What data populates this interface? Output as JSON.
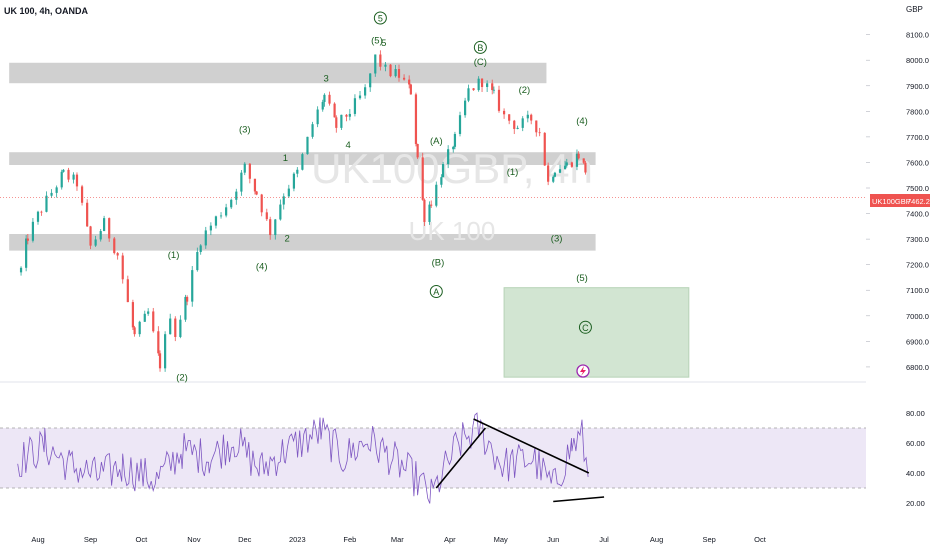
{
  "header": {
    "symbol_line": "UK 100, 4h, OANDA"
  },
  "watermark": {
    "main": "UK100GBP, 4h",
    "sub": "UK 100"
  },
  "price_tag": {
    "symbol": "UK100GBP",
    "value": "7462.2"
  },
  "colors": {
    "up": "#26a69a",
    "down": "#ef5350",
    "rsi": "#7e57c2",
    "rsi_band": "#ede7f6",
    "zone": "#c8c8c8",
    "target_box": "#d2e5d2",
    "label": "#1b5e20",
    "price_line": "#ef5350"
  },
  "chart_data": [
    {
      "type": "candlestick",
      "title": "UK 100, 4h, OANDA",
      "currency": "GBP",
      "y_ticks": [
        6800.0,
        6900.0,
        7000.0,
        7100.0,
        7200.0,
        7300.0,
        7400.0,
        7500.0,
        7600.0,
        7700.0,
        7800.0,
        7900.0,
        8000.0,
        8100.0
      ],
      "y_tick_labels": [
        "6800.0",
        "6900.0",
        "7000.0",
        "7100.0",
        "7200.0",
        "7300.0",
        "7400.0",
        "7500.0",
        "7600.0",
        "7700.0",
        "7800.0",
        "7900.0",
        "8000.0",
        "8100.0"
      ],
      "ylim": [
        6755,
        8215
      ],
      "x_ticks": [
        "Aug",
        "Sep",
        "Oct",
        "Nov",
        "Dec",
        "2023",
        "Feb",
        "Mar",
        "Apr",
        "May",
        "Jun",
        "Jul",
        "Aug",
        "Sep",
        "Oct"
      ],
      "last_price": 7462.2,
      "price_path": [
        {
          "d": "2022-07-22",
          "v": 7180
        },
        {
          "d": "2022-07-26",
          "v": 7310
        },
        {
          "d": "2022-08-03",
          "v": 7420
        },
        {
          "d": "2022-08-16",
          "v": 7555
        },
        {
          "d": "2022-08-24",
          "v": 7520
        },
        {
          "d": "2022-09-01",
          "v": 7270
        },
        {
          "d": "2022-09-09",
          "v": 7360
        },
        {
          "d": "2022-09-17",
          "v": 7240
        },
        {
          "d": "2022-09-27",
          "v": 6920
        },
        {
          "d": "2022-10-05",
          "v": 7010
        },
        {
          "d": "2022-10-12",
          "v": 6810
        },
        {
          "d": "2022-10-18",
          "v": 7010
        },
        {
          "d": "2022-10-21",
          "v": 6930
        },
        {
          "d": "2022-10-28",
          "v": 7080
        },
        {
          "d": "2022-11-05",
          "v": 7300
        },
        {
          "d": "2022-11-14",
          "v": 7380
        },
        {
          "d": "2022-11-23",
          "v": 7460
        },
        {
          "d": "2022-12-01",
          "v": 7580
        },
        {
          "d": "2022-12-08",
          "v": 7480
        },
        {
          "d": "2022-12-16",
          "v": 7330
        },
        {
          "d": "2022-12-24",
          "v": 7480
        },
        {
          "d": "2023-01-01",
          "v": 7560
        },
        {
          "d": "2023-01-10",
          "v": 7750
        },
        {
          "d": "2023-01-17",
          "v": 7860
        },
        {
          "d": "2023-01-24",
          "v": 7740
        },
        {
          "d": "2023-02-01",
          "v": 7800
        },
        {
          "d": "2023-02-10",
          "v": 7880
        },
        {
          "d": "2023-02-16",
          "v": 8010
        },
        {
          "d": "2023-02-22",
          "v": 7960
        },
        {
          "d": "2023-03-02",
          "v": 7940
        },
        {
          "d": "2023-03-09",
          "v": 7880
        },
        {
          "d": "2023-03-13",
          "v": 7620
        },
        {
          "d": "2023-03-17",
          "v": 7390
        },
        {
          "d": "2023-03-21",
          "v": 7450
        },
        {
          "d": "2023-03-28",
          "v": 7580
        },
        {
          "d": "2023-04-04",
          "v": 7690
        },
        {
          "d": "2023-04-12",
          "v": 7880
        },
        {
          "d": "2023-04-20",
          "v": 7920
        },
        {
          "d": "2023-04-27",
          "v": 7860
        },
        {
          "d": "2023-05-03",
          "v": 7780
        },
        {
          "d": "2023-05-11",
          "v": 7740
        },
        {
          "d": "2023-05-19",
          "v": 7770
        },
        {
          "d": "2023-05-24",
          "v": 7720
        },
        {
          "d": "2023-05-29",
          "v": 7520
        },
        {
          "d": "2023-06-02",
          "v": 7580
        },
        {
          "d": "2023-06-09",
          "v": 7590
        },
        {
          "d": "2023-06-16",
          "v": 7630
        },
        {
          "d": "2023-06-20",
          "v": 7570
        },
        {
          "d": "2023-06-22",
          "v": 7462
        }
      ],
      "zones": [
        {
          "from": "2022-07-15",
          "to": "2023-05-28",
          "low": 7910,
          "high": 7990
        },
        {
          "from": "2022-07-15",
          "to": "2023-06-26",
          "low": 7590,
          "high": 7640
        },
        {
          "from": "2022-07-15",
          "to": "2023-06-26",
          "low": 7255,
          "high": 7320
        }
      ],
      "target_box": {
        "from": "2023-05-03",
        "to": "2023-08-20",
        "low": 6760,
        "high": 7110
      },
      "wave_labels": [
        {
          "t": "5",
          "d": "2023-02-19",
          "p": 8165,
          "circled": true
        },
        {
          "t": "(5)",
          "d": "2023-02-17",
          "p": 8080
        },
        {
          "t": "5",
          "d": "2023-02-21",
          "p": 8070
        },
        {
          "t": "3",
          "d": "2023-01-18",
          "p": 7930
        },
        {
          "t": "(3)",
          "d": "2022-12-01",
          "p": 7730
        },
        {
          "t": "1",
          "d": "2022-12-25",
          "p": 7620
        },
        {
          "t": "4",
          "d": "2023-01-31",
          "p": 7670
        },
        {
          "t": "2",
          "d": "2022-12-26",
          "p": 7305
        },
        {
          "t": "(4)",
          "d": "2022-12-11",
          "p": 7195
        },
        {
          "t": "(1)",
          "d": "2022-10-20",
          "p": 7240
        },
        {
          "t": "(2)",
          "d": "2022-10-25",
          "p": 6760
        },
        {
          "t": "B",
          "d": "2023-04-19",
          "p": 8050,
          "circled": true
        },
        {
          "t": "(C)",
          "d": "2023-04-19",
          "p": 7995
        },
        {
          "t": "(2)",
          "d": "2023-05-15",
          "p": 7885
        },
        {
          "t": "(4)",
          "d": "2023-06-18",
          "p": 7765
        },
        {
          "t": "(A)",
          "d": "2023-03-24",
          "p": 7685
        },
        {
          "t": "(1)",
          "d": "2023-05-08",
          "p": 7565
        },
        {
          "t": "(B)",
          "d": "2023-03-25",
          "p": 7210
        },
        {
          "t": "(3)",
          "d": "2023-06-03",
          "p": 7305
        },
        {
          "t": "A",
          "d": "2023-03-24",
          "p": 7095,
          "circled": true
        },
        {
          "t": "(5)",
          "d": "2023-06-18",
          "p": 7150
        },
        {
          "t": "C",
          "d": "2023-06-20",
          "p": 6955,
          "circled": true
        }
      ]
    },
    {
      "type": "line",
      "indicator": "RSI",
      "y_ticks": [
        20.0,
        40.0,
        60.0,
        80.0
      ],
      "y_tick_labels": [
        "20.00",
        "40.00",
        "60.00",
        "80.00"
      ],
      "ylim": [
        15,
        87
      ],
      "band": [
        30,
        70
      ],
      "rsi_path": [
        {
          "d": "2022-07-20",
          "v": 48
        },
        {
          "d": "2022-08-05",
          "v": 58
        },
        {
          "d": "2022-08-20",
          "v": 45
        },
        {
          "d": "2022-09-05",
          "v": 38
        },
        {
          "d": "2022-09-20",
          "v": 44
        },
        {
          "d": "2022-10-10",
          "v": 35
        },
        {
          "d": "2022-10-25",
          "v": 55
        },
        {
          "d": "2022-11-10",
          "v": 50
        },
        {
          "d": "2022-11-25",
          "v": 62
        },
        {
          "d": "2022-12-10",
          "v": 42
        },
        {
          "d": "2022-12-25",
          "v": 55
        },
        {
          "d": "2023-01-15",
          "v": 68
        },
        {
          "d": "2023-01-28",
          "v": 50
        },
        {
          "d": "2023-02-12",
          "v": 62
        },
        {
          "d": "2023-02-28",
          "v": 48
        },
        {
          "d": "2023-03-13",
          "v": 35
        },
        {
          "d": "2023-03-21",
          "v": 24
        },
        {
          "d": "2023-04-05",
          "v": 58
        },
        {
          "d": "2023-04-18",
          "v": 70
        },
        {
          "d": "2023-05-02",
          "v": 45
        },
        {
          "d": "2023-05-20",
          "v": 50
        },
        {
          "d": "2023-06-01",
          "v": 30
        },
        {
          "d": "2023-06-12",
          "v": 58
        },
        {
          "d": "2023-06-18",
          "v": 64
        },
        {
          "d": "2023-06-22",
          "v": 35
        }
      ],
      "trendlines": [
        {
          "d1": "2023-03-24",
          "v1": 30,
          "d2": "2023-04-22",
          "v2": 70
        },
        {
          "d1": "2023-04-15",
          "v1": 76,
          "d2": "2023-06-22",
          "v2": 40
        },
        {
          "d1": "2023-06-01",
          "v1": 21,
          "d2": "2023-07-01",
          "v2": 24
        }
      ]
    }
  ]
}
